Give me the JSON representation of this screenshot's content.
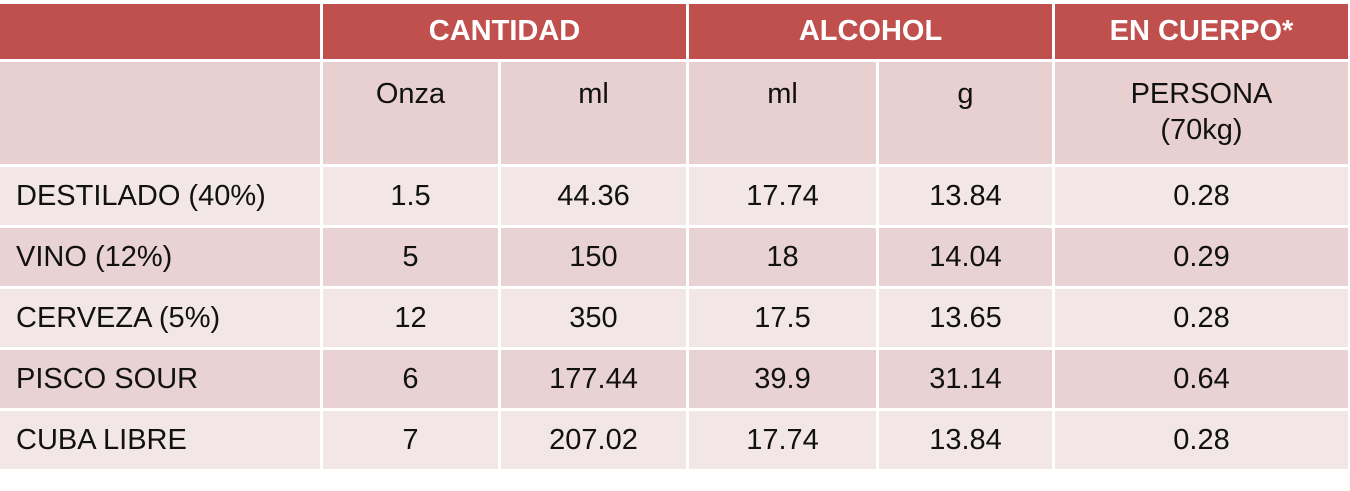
{
  "table": {
    "header": [
      "CANTIDAD",
      "ALCOHOL",
      "EN CUERPO*"
    ],
    "subheader": [
      "Onza",
      "ml",
      "ml",
      "g",
      "PERSONA\n(70kg)"
    ],
    "rows": [
      [
        "DESTILADO (40%)",
        "1.5",
        "44.36",
        "17.74",
        "13.84",
        "0.28"
      ],
      [
        "VINO (12%)",
        "5",
        "150",
        "18",
        "14.04",
        "0.29"
      ],
      [
        "CERVEZA (5%)",
        "12",
        "350",
        "17.5",
        "13.65",
        "0.28"
      ],
      [
        "PISCO SOUR",
        "6",
        "177.44",
        "39.9",
        "31.14",
        "0.64"
      ],
      [
        "CUBA LIBRE",
        "7",
        "207.02",
        "17.74",
        "13.84",
        "0.28"
      ]
    ]
  }
}
